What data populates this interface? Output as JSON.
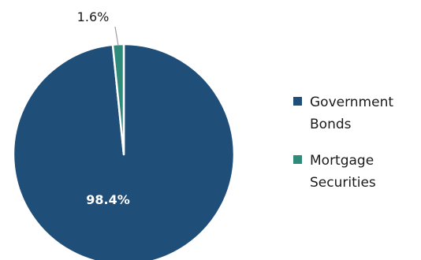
{
  "chart_data": {
    "type": "pie",
    "title": "",
    "slices": [
      {
        "name": "Government Bonds",
        "value": 98.4,
        "label": "98.4%",
        "color": "#1f4e79"
      },
      {
        "name": "Mortgage Securities",
        "value": 1.6,
        "label": "1.6%",
        "color": "#2e8b7a"
      }
    ],
    "legend_position": "right",
    "leader_line_color": "#9e9e9e"
  }
}
